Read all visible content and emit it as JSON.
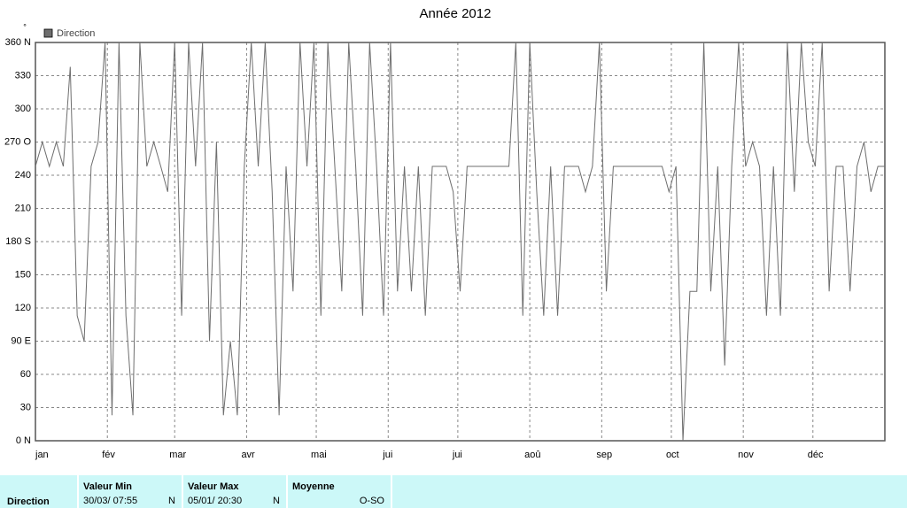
{
  "chart_data": {
    "type": "line",
    "title": "Année 2012",
    "y_unit": "°",
    "x": [
      0,
      3,
      6,
      9,
      12,
      15,
      18,
      21,
      24,
      27,
      30,
      33,
      36,
      39,
      42,
      45,
      48,
      51,
      54,
      57,
      60,
      63,
      66,
      69,
      72,
      75,
      78,
      81,
      84,
      87,
      90,
      93,
      96,
      99,
      102,
      105,
      108,
      111,
      114,
      117,
      120,
      123,
      126,
      129,
      132,
      135,
      138,
      141,
      144,
      147,
      150,
      153,
      156,
      159,
      162,
      165,
      168,
      171,
      174,
      177,
      180,
      183,
      186,
      189,
      192,
      195,
      198,
      201,
      204,
      207,
      210,
      213,
      216,
      219,
      222,
      225,
      228,
      231,
      234,
      237,
      240,
      243,
      246,
      249,
      252,
      255,
      258,
      261,
      264,
      267,
      270,
      273,
      276,
      279,
      282,
      285,
      288,
      291,
      294,
      297,
      300,
      303,
      306,
      309,
      312,
      315,
      318,
      321,
      324,
      327,
      330,
      333,
      336,
      339,
      342,
      345,
      348,
      351,
      354,
      357,
      360,
      363,
      366
    ],
    "series": [
      {
        "name": "Direction",
        "color": "#6e6e6e",
        "values": [
          248,
          270,
          248,
          270,
          248,
          338,
          113,
          90,
          248,
          270,
          360,
          23,
          360,
          113,
          23,
          360,
          248,
          270,
          248,
          225,
          360,
          113,
          360,
          248,
          360,
          90,
          270,
          23,
          90,
          23,
          248,
          360,
          248,
          360,
          225,
          23,
          248,
          135,
          360,
          248,
          360,
          113,
          360,
          248,
          135,
          360,
          248,
          113,
          360,
          248,
          113,
          360,
          135,
          248,
          135,
          248,
          113,
          248,
          248,
          248,
          225,
          135,
          248,
          248,
          248,
          248,
          248,
          248,
          248,
          360,
          113,
          360,
          225,
          113,
          248,
          113,
          248,
          248,
          248,
          225,
          248,
          360,
          135,
          248,
          248,
          248,
          248,
          248,
          248,
          248,
          248,
          225,
          248,
          0,
          135,
          135,
          360,
          135,
          248,
          68,
          248,
          360,
          248,
          270,
          248,
          113,
          248,
          113,
          360,
          225,
          360,
          270,
          248,
          360,
          135,
          248,
          248,
          135,
          248,
          270,
          225,
          248,
          248
        ]
      }
    ],
    "xlim": [
      0,
      366
    ],
    "xticks": [
      {
        "value": 0,
        "label": "jan"
      },
      {
        "value": 31,
        "label": "fév"
      },
      {
        "value": 60,
        "label": "mar"
      },
      {
        "value": 91,
        "label": "avr"
      },
      {
        "value": 121,
        "label": "mai"
      },
      {
        "value": 152,
        "label": "jui"
      },
      {
        "value": 182,
        "label": "jui"
      },
      {
        "value": 213,
        "label": "aoû"
      },
      {
        "value": 244,
        "label": "sep"
      },
      {
        "value": 274,
        "label": "oct"
      },
      {
        "value": 305,
        "label": "nov"
      },
      {
        "value": 335,
        "label": "déc"
      }
    ],
    "ylim": [
      0,
      360
    ],
    "yticks": [
      {
        "value": 0,
        "label": "0 N"
      },
      30,
      60,
      {
        "value": 90,
        "label": "90 E"
      },
      120,
      150,
      {
        "value": 180,
        "label": "180 S"
      },
      210,
      240,
      {
        "value": 270,
        "label": "270 O"
      },
      300,
      330,
      {
        "value": 360,
        "label": "360 N"
      }
    ],
    "grid": true
  },
  "summary": {
    "label": "Direction",
    "columns": [
      {
        "header": "Valeur Min",
        "date": "30/03/ 07:55",
        "dir": "N"
      },
      {
        "header": "Valeur Max",
        "date": "05/01/ 20:30",
        "dir": "N"
      },
      {
        "header": "Moyenne",
        "dir": "O-SO"
      }
    ]
  }
}
